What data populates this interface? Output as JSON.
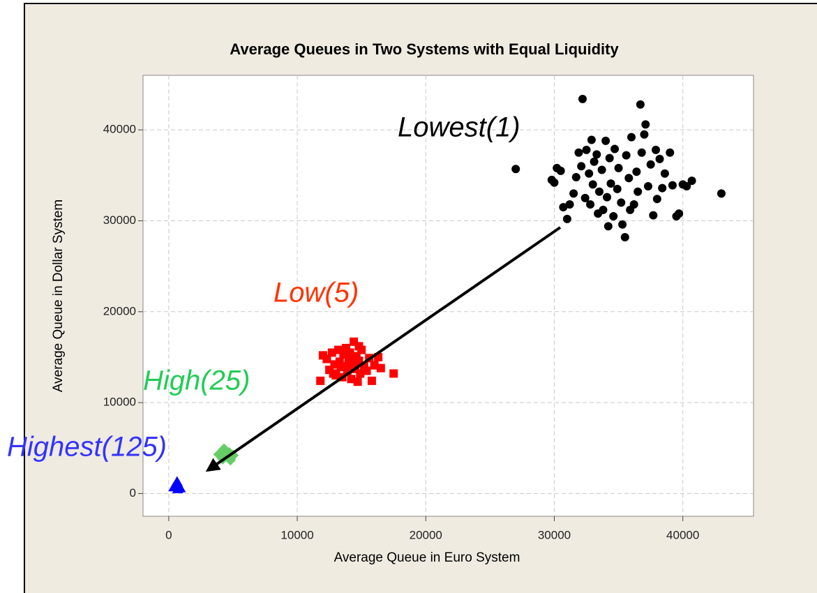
{
  "chart_data": {
    "type": "scatter",
    "title": "Average Queues in Two Systems with Equal Liquidity",
    "x_label": "Average Queue in Euro System",
    "y_label": "Average Queue in Dollar System",
    "xlim": [
      -2000,
      45500
    ],
    "ylim": [
      -2500,
      46000
    ],
    "xticks": [
      0,
      10000,
      20000,
      30000,
      40000
    ],
    "yticks": [
      0,
      10000,
      20000,
      30000,
      40000
    ],
    "grid": true,
    "series": [
      {
        "name": "Lowest(1)",
        "color": "#000000",
        "label_color": "#000000",
        "marker": "circle",
        "x": [
          27000,
          29800,
          30000,
          30200,
          30500,
          30700,
          31000,
          31200,
          31500,
          31700,
          31900,
          32100,
          32200,
          32400,
          32500,
          32700,
          32800,
          33000,
          33100,
          33300,
          33400,
          33500,
          33700,
          33800,
          34000,
          34100,
          34300,
          34400,
          34600,
          34700,
          34900,
          35000,
          35200,
          35300,
          35500,
          35600,
          35800,
          36000,
          36200,
          36400,
          36500,
          36700,
          36800,
          37000,
          37100,
          37300,
          37500,
          37700,
          37900,
          38000,
          38200,
          38400,
          38600,
          39000,
          39200,
          39500,
          39700,
          40000,
          40300,
          40700,
          43000,
          35900,
          32900,
          34200
        ],
        "y": [
          35700,
          34500,
          34200,
          35800,
          35500,
          31500,
          30200,
          31800,
          33000,
          34800,
          37500,
          36000,
          43400,
          32500,
          37800,
          35200,
          31800,
          34000,
          36500,
          37300,
          30800,
          33200,
          35600,
          31200,
          38800,
          32600,
          36900,
          34100,
          30500,
          37900,
          33500,
          35800,
          32000,
          29600,
          28200,
          37200,
          34700,
          39200,
          31800,
          35400,
          33200,
          42800,
          37500,
          39500,
          40600,
          33800,
          36200,
          30600,
          37800,
          32400,
          36800,
          33600,
          35200,
          37500,
          33900,
          30500,
          30800,
          34000,
          33800,
          34400,
          33000,
          31200,
          38900,
          29400
        ]
      },
      {
        "name": "Low(5)",
        "color": "#ff0000",
        "label_color": "#ff3300",
        "marker": "square",
        "x": [
          11800,
          12000,
          12300,
          12500,
          12700,
          12900,
          13000,
          13200,
          13300,
          13500,
          13600,
          13700,
          13800,
          13900,
          14000,
          14100,
          14200,
          14300,
          14400,
          14500,
          14600,
          14700,
          14800,
          14900,
          15000,
          15200,
          15400,
          15600,
          15800,
          16000,
          16300,
          16500,
          17500,
          13400,
          14800,
          12800
        ],
        "y": [
          12400,
          15200,
          14800,
          13600,
          15500,
          14200,
          13000,
          15800,
          14500,
          12800,
          15300,
          14000,
          16000,
          13400,
          14800,
          15500,
          12600,
          14300,
          16700,
          13700,
          15100,
          12300,
          14600,
          13200,
          15800,
          14000,
          13500,
          14900,
          12400,
          14100,
          15000,
          13800,
          13200,
          13900,
          16200,
          13200
        ]
      },
      {
        "name": "High(25)",
        "color": "#66cc66",
        "label_color": "#22cc55",
        "marker": "diamond",
        "x": [
          3900,
          4200,
          4400,
          4600,
          4800,
          5000,
          4300,
          4700
        ],
        "y": [
          4300,
          3800,
          4600,
          4000,
          3700,
          4200,
          4900,
          4500
        ]
      },
      {
        "name": "Highest(125)",
        "color": "#0000ff",
        "label_color": "#3333ff",
        "marker": "triangle",
        "x": [
          400,
          600,
          800,
          700,
          900,
          500,
          650
        ],
        "y": [
          700,
          1100,
          800,
          500,
          600,
          900,
          1300
        ]
      }
    ]
  }
}
